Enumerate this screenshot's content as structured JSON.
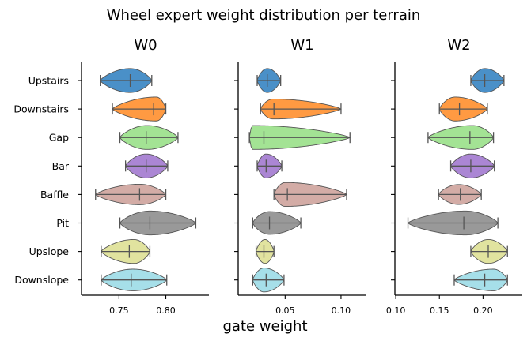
{
  "chart_data": {
    "type": "violin",
    "title": "Wheel expert weight distribution per terrain",
    "xlabel": "gate weight",
    "categories": [
      "Upstairs",
      "Downstairs",
      "Gap",
      "Bar",
      "Baffle",
      "Pit",
      "Upslope",
      "Downslope"
    ],
    "colors": [
      "#4a90c8",
      "#ff9a42",
      "#a3e394",
      "#ab86d4",
      "#d3aca6",
      "#999999",
      "#e1e39f",
      "#a6dfe9"
    ],
    "panels": [
      {
        "title": "W0",
        "xlim": [
          0.71,
          0.846
        ],
        "xticks": [
          0.75,
          0.8
        ],
        "xtick_labels": [
          "0.75",
          "0.80"
        ],
        "violins": [
          {
            "min": 0.73,
            "mean": 0.762,
            "max": 0.785,
            "mode": 0.762,
            "width": 0.42
          },
          {
            "min": 0.743,
            "mean": 0.787,
            "max": 0.8,
            "mode": 0.79,
            "width": 0.42
          },
          {
            "min": 0.751,
            "mean": 0.779,
            "max": 0.813,
            "mode": 0.78,
            "width": 0.42
          },
          {
            "min": 0.757,
            "mean": 0.779,
            "max": 0.802,
            "mode": 0.779,
            "width": 0.42
          },
          {
            "min": 0.725,
            "mean": 0.772,
            "max": 0.8,
            "mode": 0.772,
            "width": 0.36
          },
          {
            "min": 0.751,
            "mean": 0.783,
            "max": 0.832,
            "mode": 0.783,
            "width": 0.42
          },
          {
            "min": 0.731,
            "mean": 0.761,
            "max": 0.783,
            "mode": 0.766,
            "width": 0.42
          },
          {
            "min": 0.731,
            "mean": 0.763,
            "max": 0.801,
            "mode": 0.765,
            "width": 0.38
          }
        ]
      },
      {
        "title": "W1",
        "xlim": [
          0.008,
          0.122
        ],
        "xticks": [
          0.05,
          0.1
        ],
        "xtick_labels": [
          "0.05",
          "0.10"
        ],
        "violins": [
          {
            "min": 0.025,
            "mean": 0.034,
            "max": 0.046,
            "mode": 0.034,
            "width": 0.42
          },
          {
            "min": 0.028,
            "mean": 0.04,
            "max": 0.1,
            "mode": 0.039,
            "width": 0.35
          },
          {
            "min": 0.018,
            "mean": 0.031,
            "max": 0.108,
            "mode": 0.021,
            "width": 0.42
          },
          {
            "min": 0.025,
            "mean": 0.033,
            "max": 0.047,
            "mode": 0.033,
            "width": 0.42
          },
          {
            "min": 0.04,
            "mean": 0.052,
            "max": 0.105,
            "mode": 0.05,
            "width": 0.42
          },
          {
            "min": 0.021,
            "mean": 0.036,
            "max": 0.064,
            "mode": 0.036,
            "width": 0.4
          },
          {
            "min": 0.024,
            "mean": 0.031,
            "max": 0.04,
            "mode": 0.032,
            "width": 0.42
          },
          {
            "min": 0.021,
            "mean": 0.033,
            "max": 0.049,
            "mode": 0.031,
            "width": 0.42
          }
        ]
      },
      {
        "title": "W2",
        "xlim": [
          0.099,
          0.245
        ],
        "xticks": [
          0.1,
          0.15,
          0.2
        ],
        "xtick_labels": [
          "0.10",
          "0.15",
          "0.20"
        ],
        "violins": [
          {
            "min": 0.186,
            "mean": 0.202,
            "max": 0.224,
            "mode": 0.202,
            "width": 0.42
          },
          {
            "min": 0.15,
            "mean": 0.173,
            "max": 0.205,
            "mode": 0.168,
            "width": 0.42
          },
          {
            "min": 0.137,
            "mean": 0.185,
            "max": 0.212,
            "mode": 0.188,
            "width": 0.42
          },
          {
            "min": 0.163,
            "mean": 0.186,
            "max": 0.213,
            "mode": 0.186,
            "width": 0.42
          },
          {
            "min": 0.149,
            "mean": 0.174,
            "max": 0.198,
            "mode": 0.172,
            "width": 0.35
          },
          {
            "min": 0.114,
            "mean": 0.178,
            "max": 0.217,
            "mode": 0.18,
            "width": 0.42
          },
          {
            "min": 0.186,
            "mean": 0.206,
            "max": 0.228,
            "mode": 0.206,
            "width": 0.42
          },
          {
            "min": 0.167,
            "mean": 0.202,
            "max": 0.228,
            "mode": 0.212,
            "width": 0.38
          }
        ]
      }
    ]
  }
}
